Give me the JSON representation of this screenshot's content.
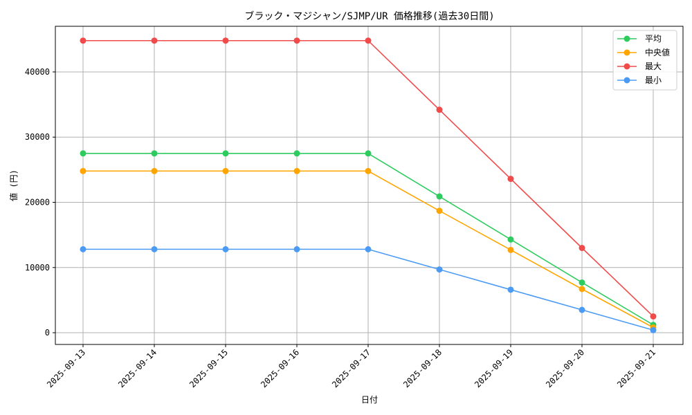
{
  "chart_data": {
    "type": "line",
    "title": "ブラック・マジシャン/SJMP/UR 価格推移(過去30日間)",
    "xlabel": "日付",
    "ylabel": "値 (円)",
    "categories": [
      "2025-09-13",
      "2025-09-14",
      "2025-09-15",
      "2025-09-16",
      "2025-09-17",
      "2025-09-18",
      "2025-09-19",
      "2025-09-20",
      "2025-09-21"
    ],
    "y_ticks": [
      0,
      10000,
      20000,
      30000,
      40000
    ],
    "ylim": [
      -1800,
      47000
    ],
    "grid": true,
    "legend_position": "top-right",
    "series": [
      {
        "name": "平均",
        "color": "#2ecc5f",
        "values": [
          27500,
          27500,
          27500,
          27500,
          27500,
          20900,
          14300,
          7700,
          1200
        ]
      },
      {
        "name": "中央値",
        "color": "#ffa500",
        "values": [
          24800,
          24800,
          24800,
          24800,
          24800,
          18700,
          12700,
          6700,
          800
        ]
      },
      {
        "name": "最大",
        "color": "#f04b4b",
        "values": [
          44800,
          44800,
          44800,
          44800,
          44800,
          34200,
          23600,
          13000,
          2500
        ]
      },
      {
        "name": "最小",
        "color": "#4b9bf5",
        "values": [
          12800,
          12800,
          12800,
          12800,
          12800,
          9700,
          6600,
          3500,
          400
        ]
      }
    ]
  }
}
